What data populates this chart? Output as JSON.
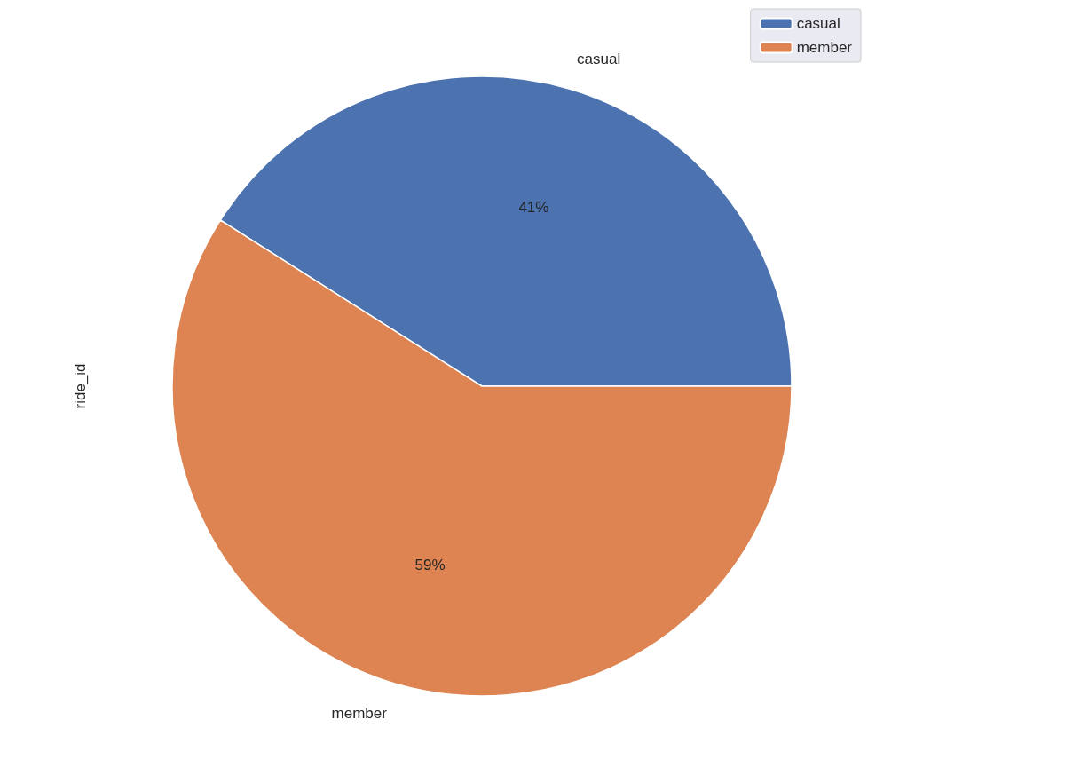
{
  "chart_data": {
    "type": "pie",
    "ylabel": "ride_id",
    "categories": [
      "casual",
      "member"
    ],
    "values": [
      41,
      59
    ],
    "colors": [
      "#4c72b0",
      "#dd8452"
    ],
    "value_labels": [
      "41%",
      "59%"
    ],
    "legend": "top right"
  }
}
